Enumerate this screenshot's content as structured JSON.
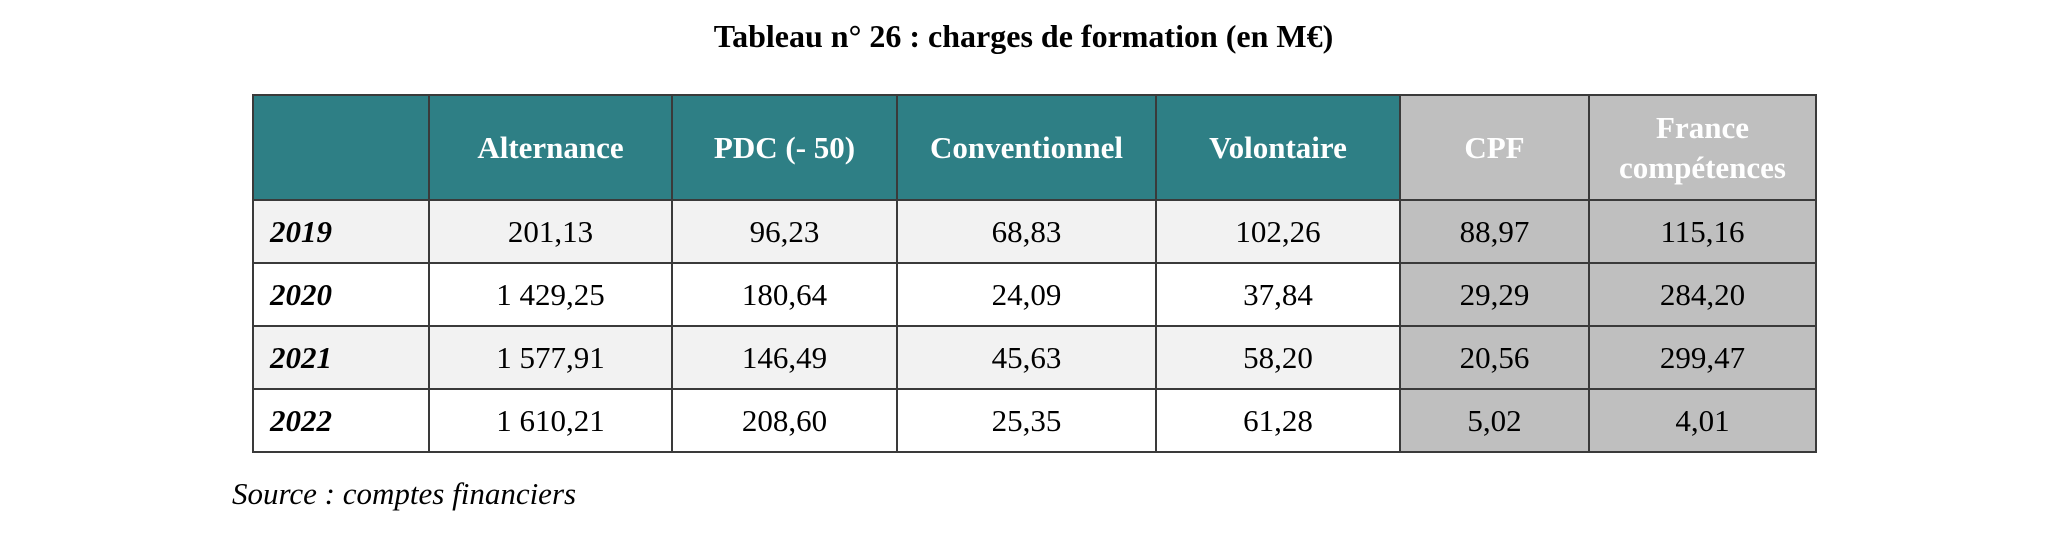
{
  "header": {
    "title": "Tableau n° 26 : charges de formation (en M€)"
  },
  "table": {
    "columns": [
      "Alternance",
      "PDC (- 50)",
      "Conventionnel",
      "Volontaire",
      "CPF",
      "France compétences"
    ],
    "rows": [
      [
        "2019",
        "201,13",
        "96,23",
        "68,83",
        "102,26",
        "88,97",
        "115,16"
      ],
      [
        "2020",
        "1 429,25",
        "180,64",
        "24,09",
        "37,84",
        "29,29",
        "284,20"
      ],
      [
        "2021",
        "1 577,91",
        "146,49",
        "45,63",
        "58,20",
        "20,56",
        "299,47"
      ],
      [
        "2022",
        "1 610,21",
        "208,60",
        "25,35",
        "61,28",
        "5,02",
        "4,01"
      ]
    ]
  },
  "source": "Source : comptes financiers"
}
